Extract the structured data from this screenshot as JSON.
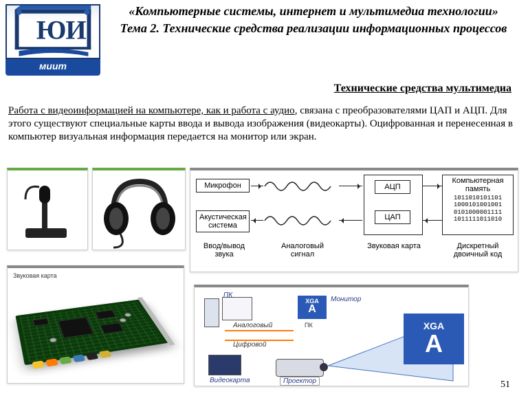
{
  "logo": {
    "letters": "ЮИ",
    "band": "миит"
  },
  "header": {
    "line1": "«Компьютерные  системы, интернет и мультимедиа технологии»",
    "line2": "Тема 2. Технические средства реализации информационных процессов"
  },
  "section_title": "Технические средства мультимедиа",
  "paragraph": {
    "underlined": "Работа с видеоинформацией на компьютере, как и работа с аудио",
    "rest": ", связана с преобразователями ЦАП и АЦП. Для этого существуют специальные карты ввода и вывода изображения (видеокарты). Оцифрованная и перенесенная в компьютер визуальная информация передается на монитор или экран."
  },
  "signal_diagram": {
    "mic": "Микрофон",
    "speaker": "Акустическая\nсистема",
    "adc": "АЦП",
    "dac": "ЦАП",
    "memory_title": "Компьютерная\nпамять",
    "memory_bits": [
      "1011010101101",
      "1000101001001",
      "0101000001111",
      "1011111011010"
    ],
    "caption_io": "Ввод/вывод\nзвука",
    "caption_analog": "Аналоговый\nсигнал",
    "caption_card": "Звуковая карта",
    "caption_binary": "Дискретный\nдвоичный код"
  },
  "soundcard": {
    "label": "Звуковая карта",
    "port_colors": [
      "#f4c430",
      "#ff7b00",
      "#66aa44",
      "#3a7ab5",
      "#222222",
      "#d4b030"
    ]
  },
  "projector_diagram": {
    "pc": "ПК",
    "monitor": "Монитор",
    "analog": "Аналоговый",
    "digital": "Цифровой",
    "videocard": "Видеокарта",
    "projector": "Проектор",
    "small_pc": "ПК",
    "xga": "XGA",
    "xga_sub": "A"
  },
  "page_number": "51",
  "colors": {
    "logo_blue": "#1a4a9e",
    "accent_green": "#66aa44",
    "xga_blue": "#2a5ab5",
    "pcb_green": "#0a3a0a"
  }
}
